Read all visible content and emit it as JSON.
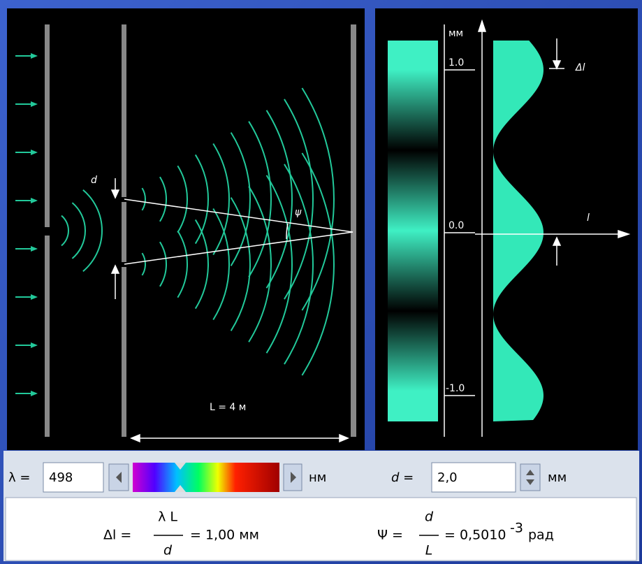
{
  "simulation": {
    "slit_label": "d",
    "angle_label": "ψ",
    "distance_label": "L = 4 м"
  },
  "screen": {
    "unit": "мм",
    "ticks": [
      "1.0",
      "0.0",
      "-1.0"
    ],
    "fringe_label": "Δl",
    "axis_label": "l"
  },
  "controls": {
    "wavelength_label": "λ =",
    "wavelength_value": "498",
    "wavelength_unit": "нм",
    "slit_label": "d =",
    "slit_value": "2,0",
    "slit_unit": "мм"
  },
  "formulas": {
    "fringe": {
      "lhs": "Δl =",
      "numerator": "λ L",
      "denominator": "d",
      "result": "= 1,00 мм"
    },
    "angle": {
      "lhs": "Ψ =",
      "numerator": "d",
      "denominator": "L",
      "result": "= 0,5010",
      "exponent": "-3",
      "unit": "рад"
    }
  }
}
